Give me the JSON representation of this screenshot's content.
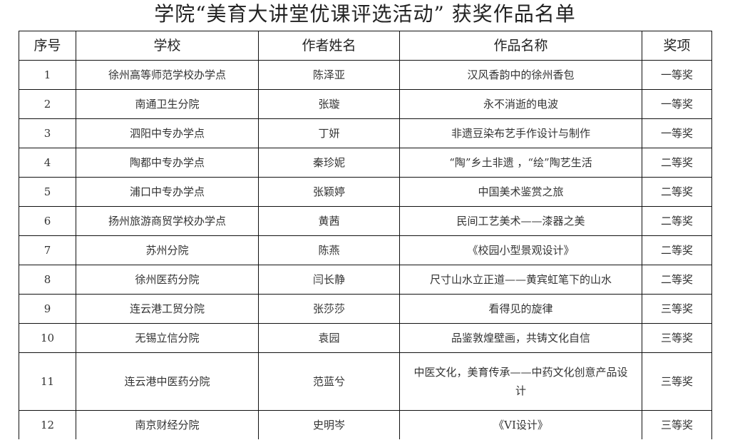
{
  "title": "学院“美育大讲堂优课评选活动” 获奖作品名单",
  "headers": [
    "序号",
    "学校",
    "作者姓名",
    "作品名称",
    "奖项"
  ],
  "rows": [
    [
      "1",
      "徐州高等师范学校办学点",
      "陈泽亚",
      "汉风香韵中的徐州香包",
      "一等奖"
    ],
    [
      "2",
      "南通卫生分院",
      "张璇",
      "永不消逝的电波",
      "一等奖"
    ],
    [
      "3",
      "泗阳中专办学点",
      "丁妍",
      "非遗豆染布艺手作设计与制作",
      "一等奖"
    ],
    [
      "4",
      "陶都中专办学点",
      "秦珍妮",
      "“陶”乡土非遗 ，“绘”陶艺生活",
      "二等奖"
    ],
    [
      "5",
      "浦口中专办学点",
      "张颖婷",
      "中国美术鉴赏之旅",
      "二等奖"
    ],
    [
      "6",
      "扬州旅游商贸学校办学点",
      "黄茜",
      "民间工艺美术——漆器之美",
      "二等奖"
    ],
    [
      "7",
      "苏州分院",
      "陈燕",
      "《校园小型景观设计》",
      "二等奖"
    ],
    [
      "8",
      "徐州医药分院",
      "闫长静",
      "尺寸山水立正道——黄宾虹笔下的山水",
      "二等奖"
    ],
    [
      "9",
      "连云港工贸分院",
      "张莎莎",
      "看得见的旋律",
      "三等奖"
    ],
    [
      "10",
      "无锡立信分院",
      "袁园",
      "品鉴敦煌壁画，共铸文化自信",
      "三等奖"
    ],
    [
      "11",
      "连云港中医药分院",
      "范蓝兮",
      "中医文化，美育传承——中药文化创意产品设计",
      "三等奖"
    ],
    [
      "12",
      "南京财经分院",
      "史明岑",
      "《VI设计》",
      "三等奖"
    ]
  ]
}
